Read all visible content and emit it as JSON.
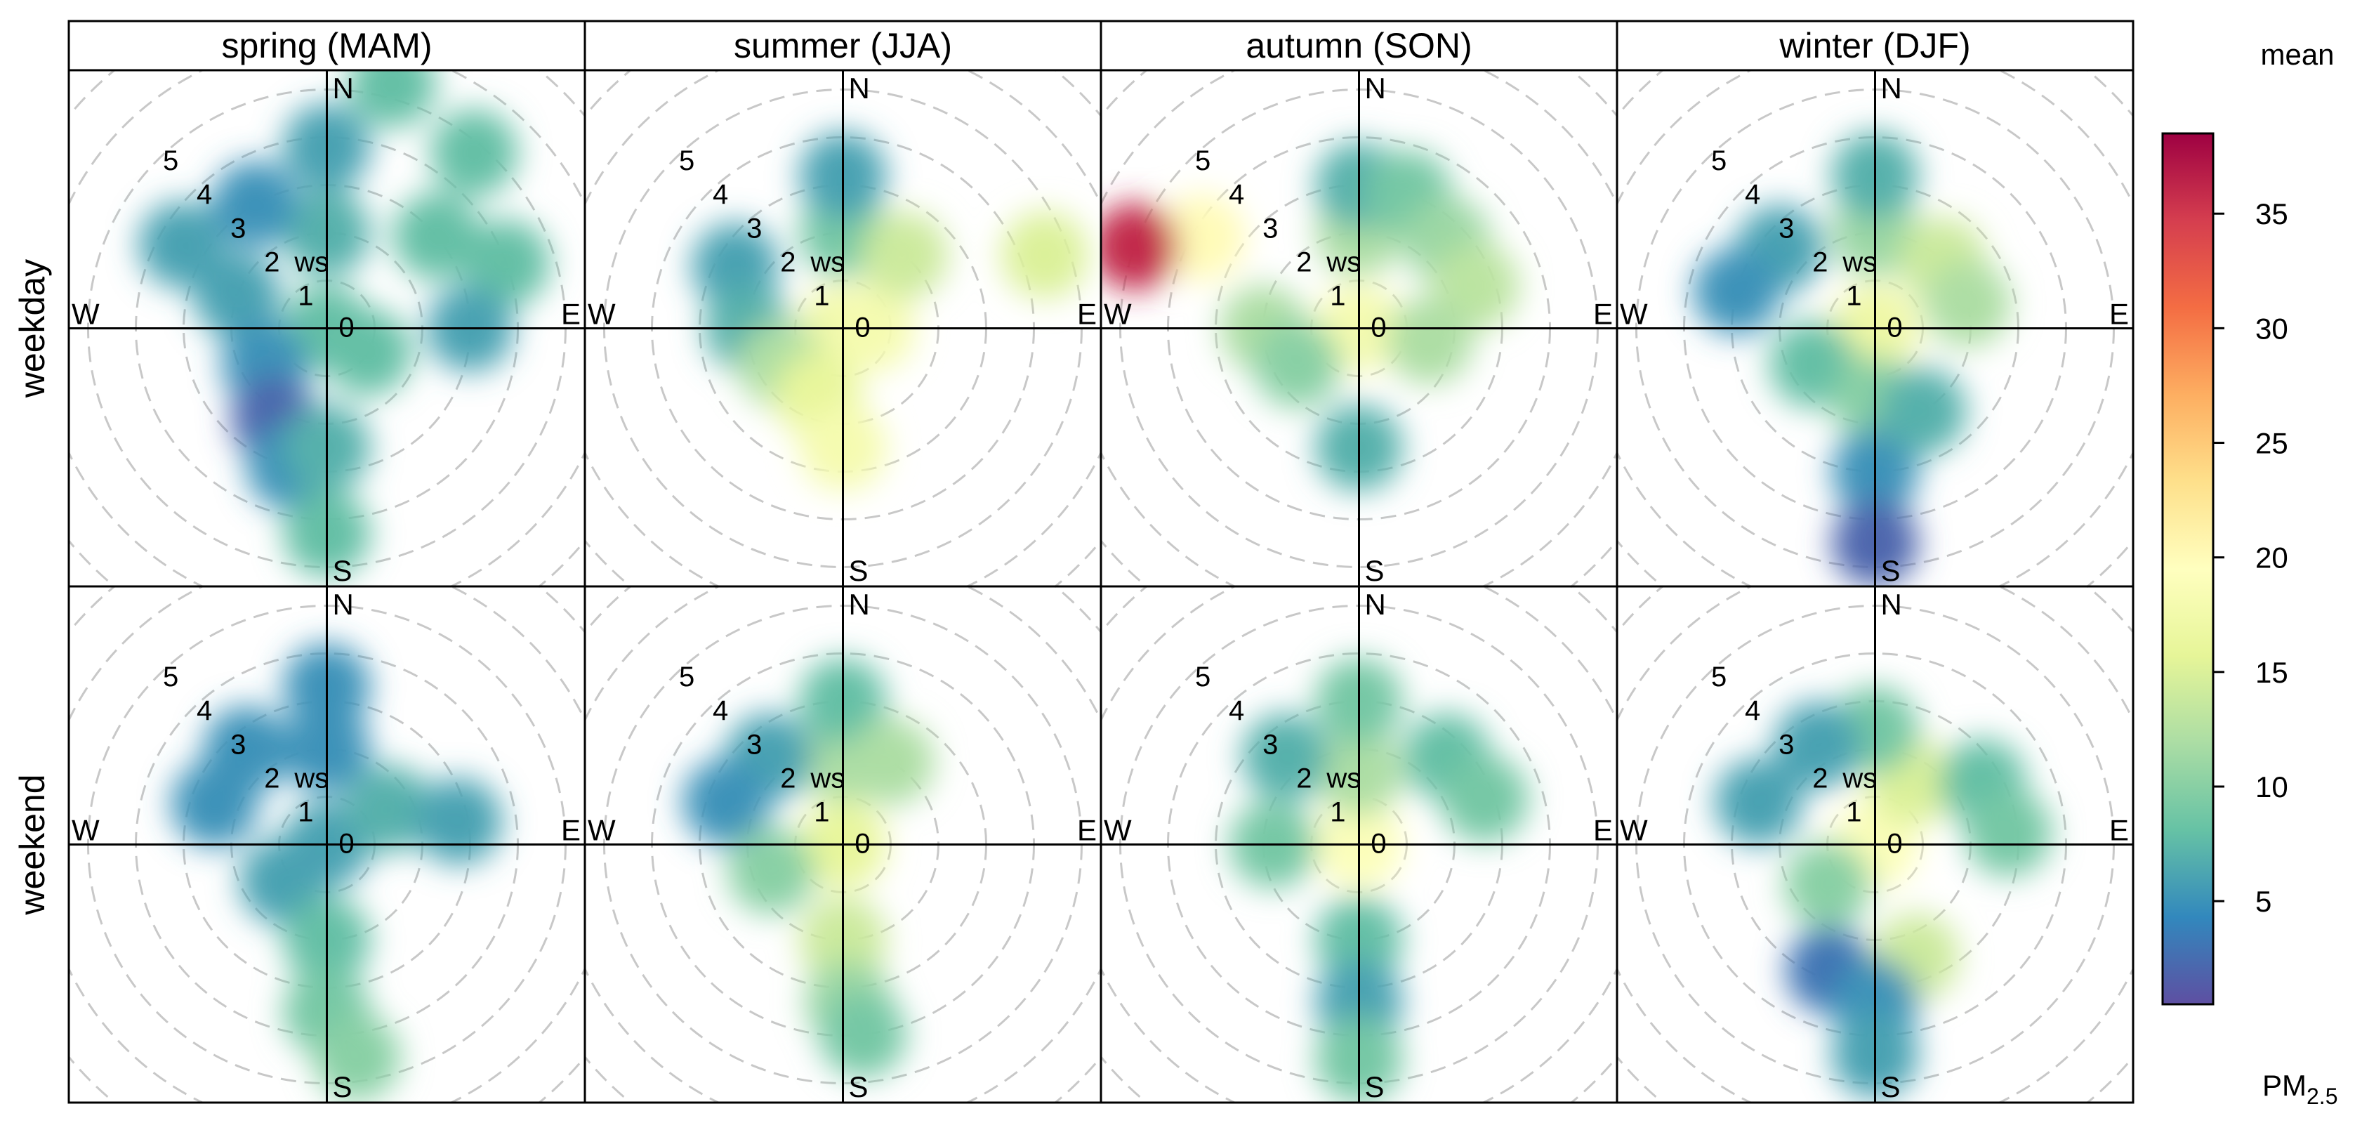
{
  "chart_data": {
    "type": "polar-heatmap",
    "description_title": "",
    "statistic_label": "mean",
    "pollutant_label": "PM",
    "pollutant_subscript": "2.5",
    "seasons": [
      "spring (MAM)",
      "summer (JJA)",
      "autumn (SON)",
      "winter (DJF)"
    ],
    "day_types": [
      "weekday",
      "weekend"
    ],
    "compass_labels": {
      "north": "N",
      "south": "S",
      "east": "E",
      "west": "W"
    },
    "radial_axis": {
      "variable_label": "ws",
      "rings": [
        1,
        2,
        3,
        4,
        5
      ],
      "ring_labels": [
        "0",
        "1",
        "2",
        "3",
        "4",
        "5"
      ],
      "max": 5
    },
    "colorbar": {
      "min": 0.5,
      "max": 38.5,
      "ticks": [
        5,
        10,
        15,
        20,
        25,
        30,
        35
      ],
      "tick_labels": [
        "5",
        "10",
        "15",
        "20",
        "25",
        "30",
        "35"
      ],
      "palette": [
        "#5e4fa2",
        "#3288bd",
        "#66c2a5",
        "#abdda4",
        "#e6f598",
        "#ffffbf",
        "#fee08b",
        "#fdae61",
        "#f46d43",
        "#d53e4f",
        "#9e0142"
      ]
    },
    "panels": [
      {
        "season": "spring (MAM)",
        "day_type": "weekday",
        "blobs": [
          {
            "angle": 0,
            "ws": 0,
            "value": 8
          },
          {
            "angle": 0,
            "ws": 2.0,
            "value": 7
          },
          {
            "angle": 0,
            "ws": 3.8,
            "value": 6
          },
          {
            "angle": 15,
            "ws": 5.3,
            "value": 8
          },
          {
            "angle": 40,
            "ws": 4.8,
            "value": 8
          },
          {
            "angle": 50,
            "ws": 3.0,
            "value": 8
          },
          {
            "angle": 70,
            "ws": 4.0,
            "value": 8
          },
          {
            "angle": 90,
            "ws": 3.0,
            "value": 6
          },
          {
            "angle": 300,
            "ws": 3.5,
            "value": 6
          },
          {
            "angle": 330,
            "ws": 3.0,
            "value": 5
          },
          {
            "angle": 290,
            "ws": 2.0,
            "value": 6
          },
          {
            "angle": 240,
            "ws": 1.5,
            "value": 5
          },
          {
            "angle": 210,
            "ws": 2.2,
            "value": 2
          },
          {
            "angle": 195,
            "ws": 3.0,
            "value": 5
          },
          {
            "angle": 180,
            "ws": 2.5,
            "value": 7
          },
          {
            "angle": 180,
            "ws": 4.3,
            "value": 8
          },
          {
            "angle": 120,
            "ws": 1.0,
            "value": 8
          }
        ]
      },
      {
        "season": "summer (JJA)",
        "day_type": "weekday",
        "blobs": [
          {
            "angle": 0,
            "ws": 0,
            "value": 17
          },
          {
            "angle": 90,
            "ws": 0.6,
            "value": 18
          },
          {
            "angle": 0,
            "ws": 2.0,
            "value": 9
          },
          {
            "angle": 0,
            "ws": 3.2,
            "value": 6
          },
          {
            "angle": 300,
            "ws": 2.6,
            "value": 6
          },
          {
            "angle": 270,
            "ws": 2.0,
            "value": 7
          },
          {
            "angle": 240,
            "ws": 1.5,
            "value": 12
          },
          {
            "angle": 200,
            "ws": 1.5,
            "value": 16
          },
          {
            "angle": 180,
            "ws": 2.5,
            "value": 18
          },
          {
            "angle": 70,
            "ws": 4.5,
            "value": 15
          },
          {
            "angle": 40,
            "ws": 2.0,
            "value": 14
          }
        ]
      },
      {
        "season": "autumn (SON)",
        "day_type": "weekday",
        "blobs": [
          {
            "angle": 0,
            "ws": 0,
            "value": 18
          },
          {
            "angle": 0,
            "ws": 2.0,
            "value": 12
          },
          {
            "angle": 0,
            "ws": 3.0,
            "value": 7
          },
          {
            "angle": 20,
            "ws": 3.0,
            "value": 9
          },
          {
            "angle": 45,
            "ws": 2.6,
            "value": 11
          },
          {
            "angle": 70,
            "ws": 2.6,
            "value": 13
          },
          {
            "angle": 300,
            "ws": 3.8,
            "value": 20
          },
          {
            "angle": 290,
            "ws": 5.0,
            "value": 36
          },
          {
            "angle": 270,
            "ws": 2.0,
            "value": 12
          },
          {
            "angle": 240,
            "ws": 1.5,
            "value": 10
          },
          {
            "angle": 180,
            "ws": 2.5,
            "value": 7
          },
          {
            "angle": 100,
            "ws": 1.5,
            "value": 12
          }
        ]
      },
      {
        "season": "winter (DJF)",
        "day_type": "weekday",
        "blobs": [
          {
            "angle": 0,
            "ws": 0,
            "value": 17
          },
          {
            "angle": 0,
            "ws": 2.0,
            "value": 11
          },
          {
            "angle": 0,
            "ws": 3.2,
            "value": 7
          },
          {
            "angle": 45,
            "ws": 2.0,
            "value": 14
          },
          {
            "angle": 75,
            "ws": 2.0,
            "value": 12
          },
          {
            "angle": 310,
            "ws": 2.6,
            "value": 6
          },
          {
            "angle": 285,
            "ws": 3.0,
            "value": 5
          },
          {
            "angle": 240,
            "ws": 1.5,
            "value": 8
          },
          {
            "angle": 180,
            "ws": 1.5,
            "value": 10
          },
          {
            "angle": 180,
            "ws": 3.0,
            "value": 5
          },
          {
            "angle": 180,
            "ws": 4.5,
            "value": 2
          },
          {
            "angle": 150,
            "ws": 2.0,
            "value": 7
          }
        ]
      },
      {
        "season": "spring (MAM)",
        "day_type": "weekend",
        "blobs": [
          {
            "angle": 0,
            "ws": 0,
            "value": 6
          },
          {
            "angle": 0,
            "ws": 2.0,
            "value": 5
          },
          {
            "angle": 0,
            "ws": 3.3,
            "value": 5
          },
          {
            "angle": 320,
            "ws": 2.6,
            "value": 5
          },
          {
            "angle": 290,
            "ws": 2.5,
            "value": 5
          },
          {
            "angle": 60,
            "ws": 1.5,
            "value": 7
          },
          {
            "angle": 80,
            "ws": 2.8,
            "value": 6
          },
          {
            "angle": 230,
            "ws": 1.2,
            "value": 6
          },
          {
            "angle": 180,
            "ws": 2.0,
            "value": 8
          },
          {
            "angle": 180,
            "ws": 3.5,
            "value": 9
          },
          {
            "angle": 172,
            "ws": 4.5,
            "value": 10
          }
        ]
      },
      {
        "season": "summer (JJA)",
        "day_type": "weekend",
        "blobs": [
          {
            "angle": 0,
            "ws": 0,
            "value": 16
          },
          {
            "angle": 0,
            "ws": 1.8,
            "value": 12
          },
          {
            "angle": 0,
            "ws": 3.0,
            "value": 8
          },
          {
            "angle": 320,
            "ws": 2.4,
            "value": 6
          },
          {
            "angle": 290,
            "ws": 2.6,
            "value": 5
          },
          {
            "angle": 250,
            "ws": 1.6,
            "value": 10
          },
          {
            "angle": 30,
            "ws": 2.0,
            "value": 12
          },
          {
            "angle": 180,
            "ws": 2.0,
            "value": 14
          },
          {
            "angle": 178,
            "ws": 3.3,
            "value": 11
          },
          {
            "angle": 174,
            "ws": 4.0,
            "value": 9
          }
        ]
      },
      {
        "season": "autumn (SON)",
        "day_type": "weekend",
        "blobs": [
          {
            "angle": 0,
            "ws": 0,
            "value": 19
          },
          {
            "angle": 0,
            "ws": 1.5,
            "value": 12
          },
          {
            "angle": 0,
            "ws": 3.0,
            "value": 9
          },
          {
            "angle": 45,
            "ws": 2.6,
            "value": 8
          },
          {
            "angle": 70,
            "ws": 2.8,
            "value": 9
          },
          {
            "angle": 320,
            "ws": 2.4,
            "value": 7
          },
          {
            "angle": 270,
            "ws": 1.8,
            "value": 9
          },
          {
            "angle": 180,
            "ws": 2.0,
            "value": 8
          },
          {
            "angle": 180,
            "ws": 3.3,
            "value": 6
          },
          {
            "angle": 180,
            "ws": 4.5,
            "value": 9
          }
        ]
      },
      {
        "season": "winter (DJF)",
        "day_type": "weekend",
        "blobs": [
          {
            "angle": 0,
            "ws": 0,
            "value": 19
          },
          {
            "angle": 30,
            "ws": 1.5,
            "value": 15
          },
          {
            "angle": 0,
            "ws": 2.4,
            "value": 9
          },
          {
            "angle": 330,
            "ws": 2.4,
            "value": 6
          },
          {
            "angle": 290,
            "ws": 2.6,
            "value": 6
          },
          {
            "angle": 60,
            "ws": 2.6,
            "value": 8
          },
          {
            "angle": 85,
            "ws": 2.8,
            "value": 9
          },
          {
            "angle": 230,
            "ws": 1.3,
            "value": 10
          },
          {
            "angle": 160,
            "ws": 2.5,
            "value": 14
          },
          {
            "angle": 200,
            "ws": 2.8,
            "value": 3
          },
          {
            "angle": 180,
            "ws": 3.3,
            "value": 5
          },
          {
            "angle": 180,
            "ws": 4.4,
            "value": 6
          }
        ]
      }
    ]
  }
}
